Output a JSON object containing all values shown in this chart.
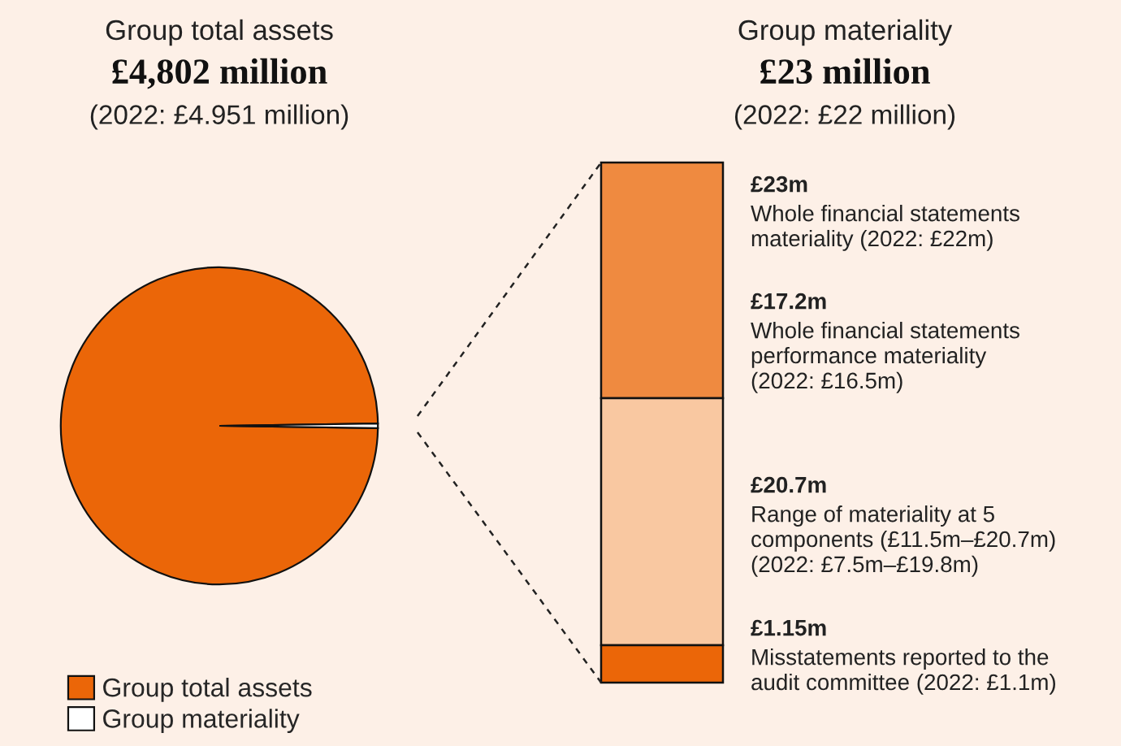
{
  "chart_data": [
    {
      "type": "pie",
      "title": "Group total assets",
      "subtitle": "£4,802 million",
      "annotations": [
        "(2022: £4.951 million)"
      ],
      "categories": [
        "Group total assets",
        "Group materiality"
      ],
      "values": [
        99.52,
        0.48
      ],
      "colors": [
        "#eb6608",
        "#ffffff"
      ],
      "legend": "bottom left"
    },
    {
      "type": "other",
      "title": "Group materiality",
      "subtitle": "£23 million",
      "annotations": [
        "(2022: £22 million)",
        "£23m",
        "Whole financial statements\nmateriality (2022: £22m)",
        "£17.2m",
        "Whole financial statements\nperformance materiality\n(2022: £16.5m)",
        "£20.7m",
        "Range of materiality at 5\ncomponents (£11.5m–£20.7m)\n(2022: £7.5m–£19.8m)",
        "£1.15m",
        "Misstatements reported to the\naudit committee (2022: £1.1m)"
      ]
    }
  ]
}
